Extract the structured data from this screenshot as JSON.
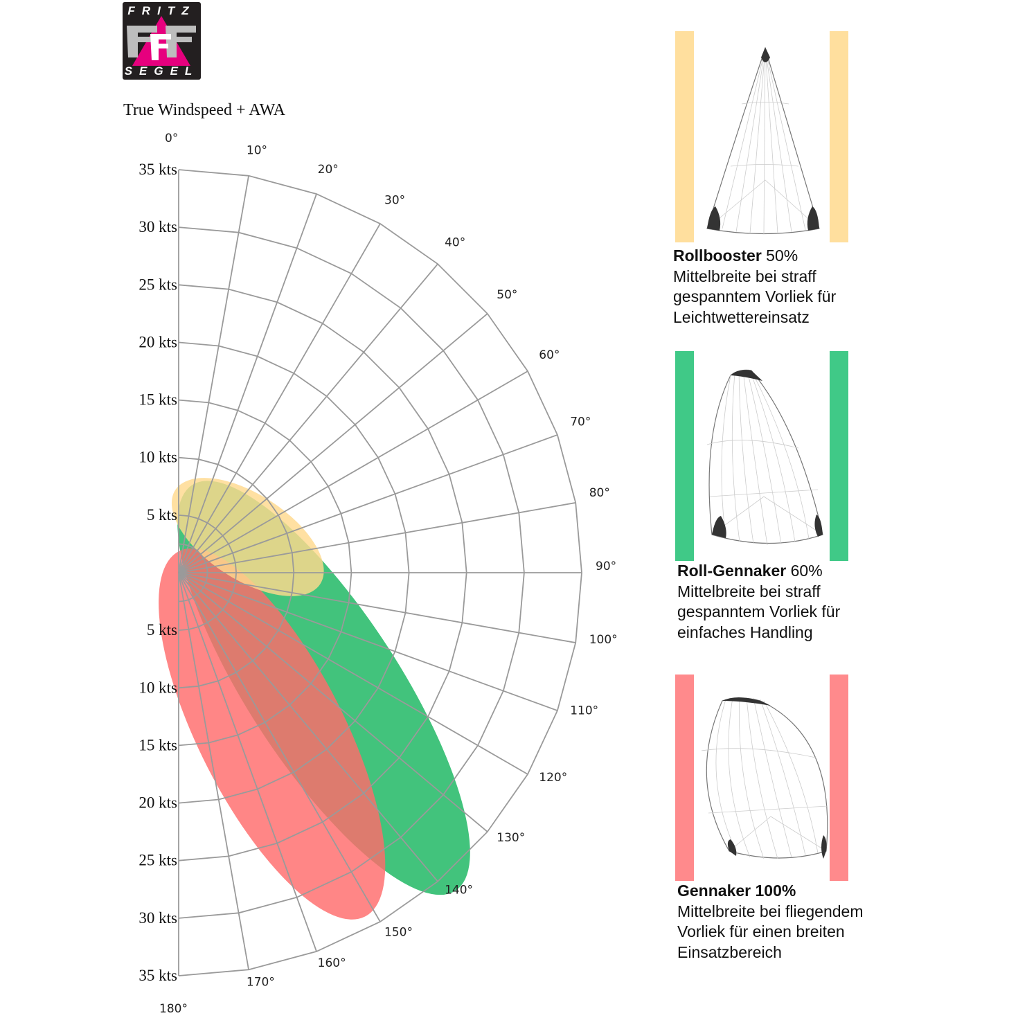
{
  "logo": {
    "top_text": "FRITZ",
    "bottom_text": "SEGEL"
  },
  "chart_data": {
    "type": "polar",
    "title": "True Windspeed + AWA",
    "angle_ticks": [
      "0°",
      "10°",
      "20°",
      "30°",
      "40°",
      "50°",
      "60°",
      "70°",
      "80°",
      "90°",
      "100°",
      "110°",
      "120°",
      "130°",
      "140°",
      "150°",
      "160°",
      "170°",
      "180°"
    ],
    "speed_ticks": [
      5,
      10,
      15,
      20,
      25,
      30,
      35
    ],
    "speed_unit": "kts",
    "rlim": [
      0,
      35
    ],
    "grid": true,
    "series": [
      {
        "name": "Roll-Gennaker",
        "color": "#2ebd6e",
        "cx_kts": 12.6,
        "cy_kts": -10.0,
        "rx_kts": 6.6,
        "ry_kts": 21.0,
        "rot_deg": -33
      },
      {
        "name": "Gennaker",
        "color": "#ff6b6b",
        "cx_kts": 8.1,
        "cy_kts": -14.0,
        "rx_kts": 6.3,
        "ry_kts": 17.8,
        "rot_deg": -27
      },
      {
        "name": "Rollbooster",
        "color": "#ffd98e",
        "cx_kts": 6.0,
        "cy_kts": 3.1,
        "rx_kts": 3.7,
        "ry_kts": 7.5,
        "rot_deg": -57
      }
    ]
  },
  "sails": [
    {
      "name": "Rollbooster",
      "pct": " 50%",
      "lines": [
        "Mittelbreite bei straff",
        "gespanntem Vorliek für",
        "Leichtwettereinsatz"
      ],
      "color": "#ffdf9e"
    },
    {
      "name": "Roll-Gennaker",
      "pct": " 60%",
      "lines": [
        "Mittelbreite bei straff",
        "gespanntem Vorliek für",
        "einfaches Handling"
      ],
      "color": "#40c987"
    },
    {
      "name": "Gennaker 100%",
      "pct": "",
      "lines": [
        "Mittelbreite bei fliegendem",
        "Vorliek für einen breiten",
        "Einsatzbereich"
      ],
      "color": "#ff8a8c"
    }
  ]
}
